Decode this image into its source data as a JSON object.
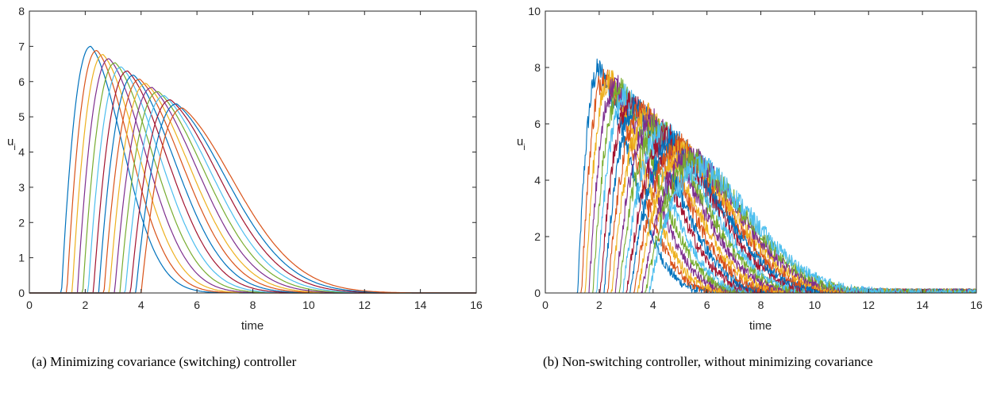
{
  "captions": {
    "a": "(a) Minimizing covariance (switching) controller",
    "b": "(b) Non-switching controller, without minimizing covariance"
  },
  "colors": [
    "#0072BD",
    "#D95319",
    "#EDB120",
    "#7E2F8E",
    "#77AC30",
    "#4DBEEE",
    "#A2142F"
  ],
  "chart_data": [
    {
      "type": "line",
      "xlabel": "time",
      "ylabel": "u_i",
      "ylabel_main": "u",
      "ylabel_sub": "i",
      "xlim": [
        0,
        16
      ],
      "ylim": [
        0,
        8
      ],
      "xticks": [
        0,
        2,
        4,
        6,
        8,
        10,
        12,
        14,
        16
      ],
      "yticks": [
        0,
        1,
        2,
        3,
        4,
        5,
        6,
        7,
        8
      ],
      "xtick_labels": [
        "0",
        "2",
        "4",
        "6",
        "8",
        "10",
        "12",
        "14",
        "16"
      ],
      "ytick_labels": [
        "0",
        "1",
        "2",
        "3",
        "4",
        "5",
        "6",
        "7",
        "8"
      ],
      "grid": false,
      "noisy": false,
      "series_count": 16,
      "onset_first": 1.15,
      "onset_step": 0.19,
      "peak_first": 7.0,
      "peak_last": 5.25,
      "peak_time_first": 2.2,
      "peak_time_last": 5.5,
      "decay_end": 16
    },
    {
      "type": "line",
      "xlabel": "time",
      "ylabel": "u_i",
      "ylabel_main": "u",
      "ylabel_sub": "i",
      "xlim": [
        0,
        16
      ],
      "ylim": [
        0,
        10
      ],
      "xticks": [
        0,
        2,
        4,
        6,
        8,
        10,
        12,
        14,
        16
      ],
      "yticks": [
        0,
        2,
        4,
        6,
        8,
        10
      ],
      "xtick_labels": [
        "0",
        "2",
        "4",
        "6",
        "8",
        "10",
        "12",
        "14",
        "16"
      ],
      "ytick_labels": [
        "0",
        "2",
        "4",
        "6",
        "8",
        "10"
      ],
      "grid": false,
      "noisy": true,
      "series_count": 20,
      "onset_first": 1.2,
      "onset_step": 0.14,
      "peak_first": 7.9,
      "peak_last": 4.5,
      "peak_time_first": 2.0,
      "peak_time_last": 5.8,
      "decay_end": 16
    }
  ]
}
